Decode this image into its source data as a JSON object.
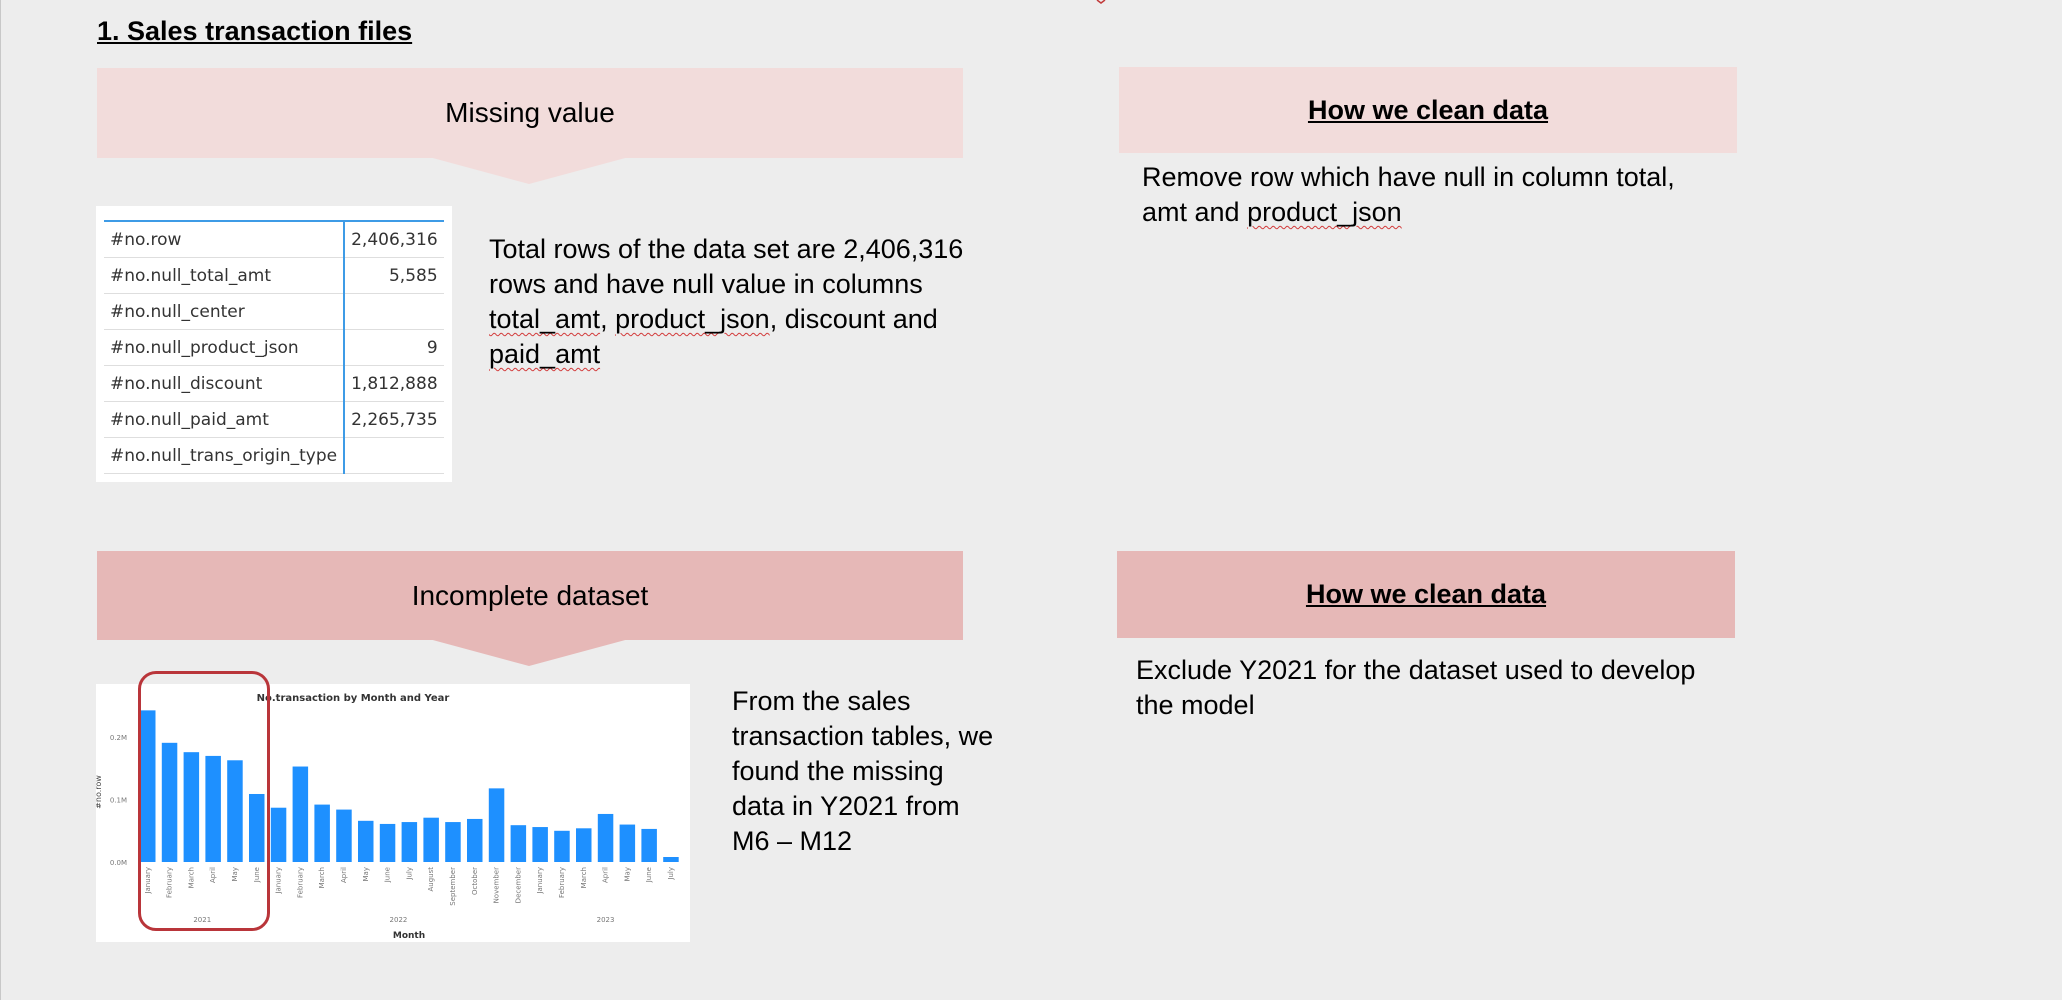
{
  "section": {
    "title": "1. Sales transaction files"
  },
  "colors": {
    "background": "#ededed",
    "callout_light": "#f2dcdb",
    "callout_dark": "#e6b8b7",
    "bar": "#1e90ff",
    "highlight_border": "#b9353a",
    "table_accent": "#3e9be6"
  },
  "missing": {
    "callout_label": "Missing value",
    "table": [
      {
        "label": "#no.row",
        "value": "2,406,316"
      },
      {
        "label": "#no.null_total_amt",
        "value": "5,585"
      },
      {
        "label": "#no.null_center",
        "value": ""
      },
      {
        "label": "#no.null_product_json",
        "value": "9"
      },
      {
        "label": "#no.null_discount",
        "value": "1,812,888"
      },
      {
        "label": "#no.null_paid_amt",
        "value": "2,265,735"
      },
      {
        "label": "#no.null_trans_origin_type",
        "value": ""
      }
    ],
    "description": {
      "line1": "Total rows of the data set are 2,406,316",
      "line2": "rows and have null value in columns",
      "line3_a": "total_amt",
      "line3_b": ", ",
      "line3_c": "product_json",
      "line3_d": ", discount and",
      "line4": "paid_amt"
    },
    "clean_heading": "How we clean data",
    "clean_text": {
      "line1": "Remove row which have null in column total,",
      "line2_a": "amt and ",
      "line2_b": "product_json"
    }
  },
  "incomplete": {
    "callout_label": "Incomplete dataset",
    "description": {
      "line1": "From the sales",
      "line2": "transaction tables, we",
      "line3": "found the missing",
      "line4": "data in Y2021 from",
      "line5": "M6 – M12"
    },
    "clean_heading": "How we clean data",
    "clean_text": {
      "line1": "Exclude Y2021 for the dataset used to develop",
      "line2": "the model"
    }
  },
  "chart_data": {
    "type": "bar",
    "title": "No.transaction by Month and Year",
    "xlabel": "Month",
    "ylabel": "#no.row",
    "yticks": [
      "0.0M",
      "0.1M",
      "0.2M"
    ],
    "ylim": [
      0,
      0.25
    ],
    "grid": false,
    "years": [
      {
        "label": "2021",
        "months": [
          "January",
          "February",
          "March",
          "April",
          "May",
          "June"
        ]
      },
      {
        "label": "2022",
        "months": [
          "January",
          "February",
          "March",
          "April",
          "May",
          "June",
          "July",
          "August",
          "September",
          "October",
          "November",
          "December"
        ]
      },
      {
        "label": "2023",
        "months": [
          "January",
          "February",
          "March",
          "April",
          "May",
          "June",
          "July"
        ]
      }
    ],
    "values": [
      0.243,
      0.191,
      0.176,
      0.17,
      0.163,
      0.109,
      0.087,
      0.153,
      0.092,
      0.084,
      0.066,
      0.061,
      0.064,
      0.071,
      0.064,
      0.069,
      0.118,
      0.059,
      0.056,
      0.05,
      0.054,
      0.077,
      0.06,
      0.053,
      0.008
    ]
  }
}
